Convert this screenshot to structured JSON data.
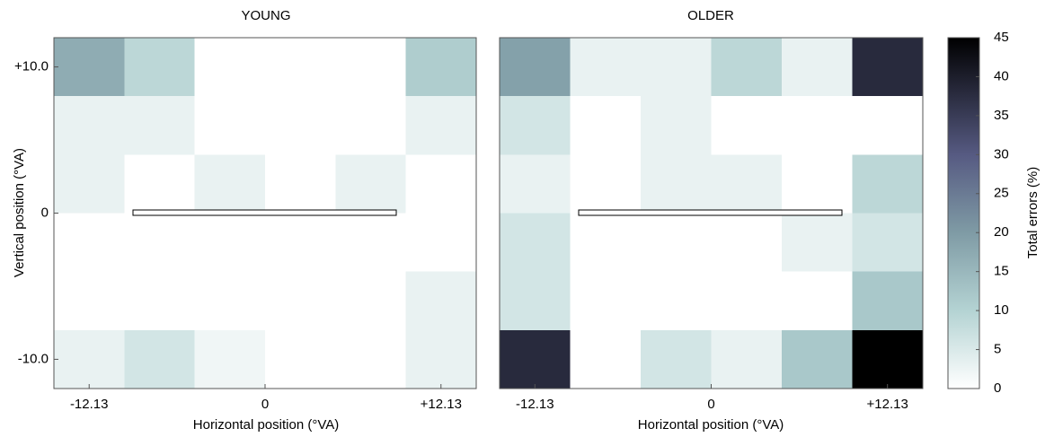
{
  "chart_data": [
    {
      "type": "heatmap",
      "title": "YOUNG",
      "x_label": "Horizontal position (°VA)",
      "y_label": "Vertical position (°VA)",
      "x": [
        -12.13,
        -7.28,
        -2.43,
        2.43,
        7.28,
        12.13
      ],
      "y": [
        10,
        6,
        2,
        -2,
        -6,
        -10
      ],
      "z": [
        [
          17,
          9,
          0,
          0,
          0,
          11
        ],
        [
          3,
          3,
          0,
          0,
          0,
          3
        ],
        [
          3,
          0,
          3,
          0,
          3,
          0
        ],
        [
          0,
          0,
          0,
          0,
          0,
          0
        ],
        [
          0,
          0,
          0,
          0,
          0,
          3
        ],
        [
          3,
          6,
          2,
          0,
          0,
          3
        ]
      ],
      "xlim": [
        -14.56,
        14.56
      ],
      "ylim": [
        -12,
        12
      ],
      "xticks": [
        -12.13,
        0,
        {
          "value": 12.13,
          "label": "+12.13"
        }
      ],
      "yticks": [
        {
          "value": 10,
          "label": "+10.0"
        },
        0,
        {
          "value": -10,
          "label": "-10.0"
        }
      ]
    },
    {
      "type": "heatmap",
      "title": "OLDER",
      "x_label": "Horizontal position (°VA)",
      "x": [
        -12.13,
        -7.28,
        -2.43,
        2.43,
        7.28,
        12.13
      ],
      "y": [
        10,
        6,
        2,
        -2,
        -6,
        -10
      ],
      "z": [
        [
          19,
          3,
          3,
          9,
          3,
          38
        ],
        [
          6,
          0,
          3,
          0,
          0,
          0
        ],
        [
          3,
          0,
          3,
          3,
          0,
          9
        ],
        [
          6,
          0,
          0,
          0,
          3,
          6
        ],
        [
          6,
          0,
          0,
          0,
          0,
          12
        ],
        [
          38,
          0,
          6,
          3,
          12,
          45
        ]
      ],
      "xlim": [
        -14.56,
        14.56
      ],
      "ylim": [
        -12,
        12
      ],
      "xticks": [
        -12.13,
        0,
        {
          "value": 12.13,
          "label": "+12.13"
        }
      ]
    }
  ],
  "colorbar": {
    "label": "Total errors (%)",
    "lim": [
      0,
      45
    ],
    "ticks": [
      0,
      5,
      10,
      15,
      20,
      25,
      30,
      35,
      40,
      45
    ],
    "colorscale": [
      [
        0,
        "#ffffff"
      ],
      [
        10,
        "#b4d3d3"
      ],
      [
        20,
        "#7f9ba5"
      ],
      [
        30,
        "#565a82"
      ],
      [
        45,
        "#000000"
      ]
    ]
  }
}
